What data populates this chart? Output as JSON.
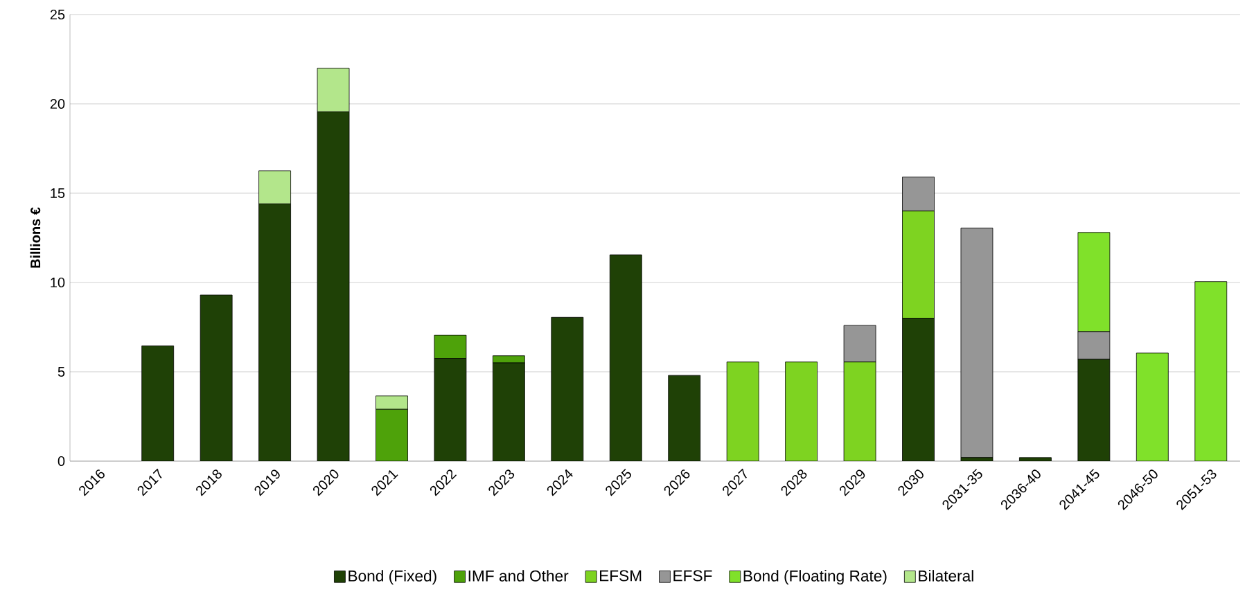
{
  "chart_data": {
    "type": "bar",
    "stacked": true,
    "ylabel": "Billions €",
    "categories": [
      "2016",
      "2017",
      "2018",
      "2019",
      "2020",
      "2021",
      "2022",
      "2023",
      "2024",
      "2025",
      "2026",
      "2027",
      "2028",
      "2029",
      "2030",
      "2031-35",
      "2036-40",
      "2041-45",
      "2046-50",
      "2051-53"
    ],
    "series": [
      {
        "name": "Bond (Fixed)",
        "color": "#1f4106",
        "values": [
          0,
          6.45,
          9.3,
          14.4,
          19.55,
          0,
          5.75,
          5.5,
          8.05,
          11.55,
          4.8,
          0,
          0,
          0,
          8.0,
          0.2,
          0.2,
          5.7,
          0,
          0
        ]
      },
      {
        "name": "IMF and Other",
        "color": "#4ea20a",
        "values": [
          0,
          0,
          0,
          0,
          0,
          2.9,
          1.3,
          0.4,
          0,
          0,
          0,
          0,
          0,
          0,
          0,
          0,
          0,
          0,
          0,
          0
        ]
      },
      {
        "name": "EFSM",
        "color": "#7ed321",
        "values": [
          0,
          0,
          0,
          0,
          0,
          0,
          0,
          0,
          0,
          0,
          0,
          5.55,
          5.55,
          5.55,
          6.0,
          0,
          0,
          0,
          0,
          0
        ]
      },
      {
        "name": "EFSF",
        "color": "#969696",
        "values": [
          0,
          0,
          0,
          0,
          0,
          0,
          0,
          0,
          0,
          0,
          0,
          0,
          0,
          2.05,
          1.9,
          12.85,
          0,
          1.55,
          0,
          0
        ]
      },
      {
        "name": "Bond (Floating Rate)",
        "color": "#80e12a",
        "values": [
          0,
          0,
          0,
          0,
          0,
          0,
          0,
          0,
          0,
          0,
          0,
          0,
          0,
          0,
          0,
          0,
          0,
          5.55,
          6.05,
          10.05
        ]
      },
      {
        "name": "Bilateral",
        "color": "#b3e68b",
        "values": [
          0,
          0,
          0,
          1.85,
          2.45,
          0.75,
          0,
          0,
          0,
          0,
          0,
          0,
          0,
          0,
          0,
          0,
          0,
          0,
          0,
          0
        ]
      }
    ],
    "ylim": [
      0,
      25
    ],
    "yticks": [
      0,
      5,
      10,
      15,
      20,
      25
    ],
    "grid": "y",
    "legend": "bottom"
  }
}
